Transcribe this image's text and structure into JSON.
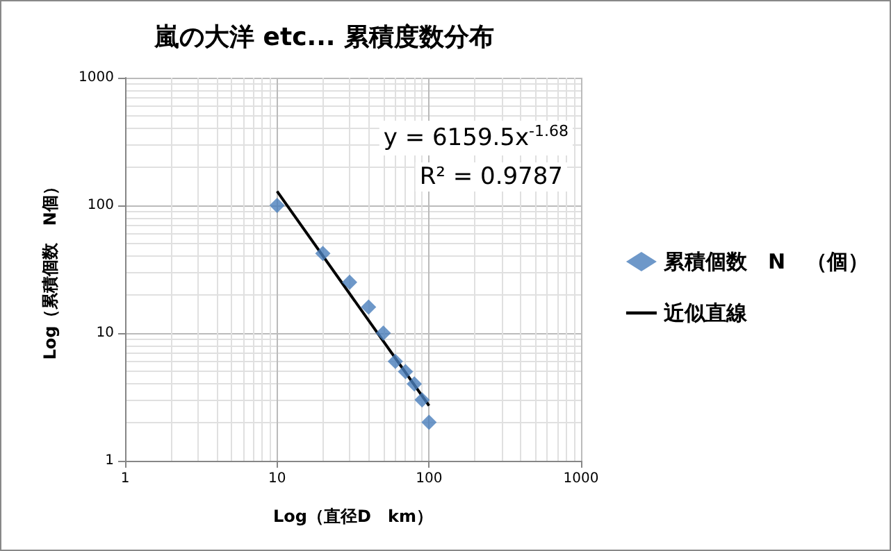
{
  "chart_data": {
    "type": "scatter",
    "title": "嵐の大洋 etc... 累積度数分布",
    "xlabel": "Log（直径D　km）",
    "ylabel": "Log（累積個数　N個）",
    "series": [
      {
        "name": "累積個数　N　（個）",
        "color": "#4a7ebb",
        "marker": "diamond",
        "x": [
          10,
          20,
          30,
          40,
          50,
          60,
          70,
          80,
          90,
          100
        ],
        "values": [
          100,
          42,
          25,
          16,
          10,
          6,
          5,
          4,
          3,
          2
        ]
      },
      {
        "name": "近似直線",
        "type": "line",
        "color": "#000000",
        "x": [
          10,
          100
        ],
        "values": [
          129,
          2.7
        ]
      }
    ],
    "annotations": [
      "y = 6159.5x$^{-1.68}$",
      "R² = 0.9787"
    ],
    "log": "xy",
    "xlim": [
      1,
      1000
    ],
    "ylim": [
      1,
      1000
    ],
    "xticks": [
      1,
      10,
      100,
      1000
    ],
    "yticks": [
      1,
      10,
      100,
      1000
    ],
    "grid": true,
    "legend": "right"
  }
}
